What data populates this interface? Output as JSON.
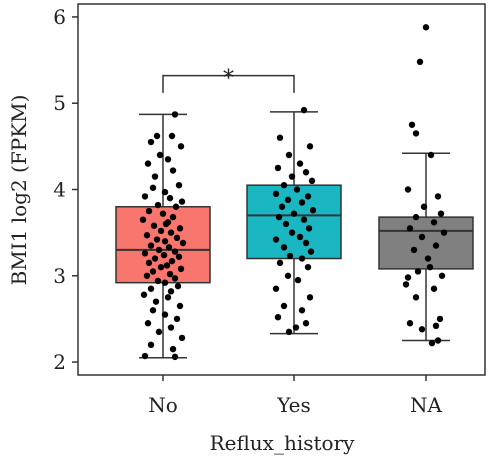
{
  "chart_data": {
    "type": "box",
    "title": "",
    "xlabel": "Reflux_history",
    "ylabel": "BMI1 log2 (FPKM)",
    "ylim": [
      1.85,
      6.15
    ],
    "yticks": [
      2,
      3,
      4,
      5,
      6
    ],
    "categories": [
      "No",
      "Yes",
      "NA"
    ],
    "colors": {
      "No": "#f8766d",
      "Yes": "#1ab7c2",
      "NA": "#808080"
    },
    "boxes": [
      {
        "name": "No",
        "whisker_low": 2.05,
        "q1": 2.92,
        "median": 3.3,
        "q3": 3.8,
        "whisker_high": 4.87
      },
      {
        "name": "Yes",
        "whisker_low": 2.33,
        "q1": 3.2,
        "median": 3.7,
        "q3": 4.05,
        "whisker_high": 4.9
      },
      {
        "name": "NA",
        "whisker_low": 2.25,
        "q1": 3.08,
        "median": 3.52,
        "q3": 3.68,
        "whisker_high": 4.42
      }
    ],
    "points": {
      "No": [
        [
          0.12,
          4.87
        ],
        [
          -0.06,
          4.62
        ],
        [
          0.09,
          4.62
        ],
        [
          -0.12,
          4.55
        ],
        [
          0.18,
          4.5
        ],
        [
          -0.03,
          4.4
        ],
        [
          0.05,
          4.35
        ],
        [
          -0.15,
          4.3
        ],
        [
          0.1,
          4.22
        ],
        [
          -0.08,
          4.15
        ],
        [
          0.16,
          4.05
        ],
        [
          -0.1,
          4.02
        ],
        [
          0.02,
          3.97
        ],
        [
          -0.18,
          3.92
        ],
        [
          0.07,
          3.9
        ],
        [
          0.19,
          3.86
        ],
        [
          -0.05,
          3.82
        ],
        [
          0.13,
          3.8
        ],
        [
          -0.14,
          3.75
        ],
        [
          0.0,
          3.72
        ],
        [
          0.1,
          3.68
        ],
        [
          -0.2,
          3.65
        ],
        [
          0.05,
          3.62
        ],
        [
          -0.09,
          3.58
        ],
        [
          0.17,
          3.55
        ],
        [
          -0.02,
          3.52
        ],
        [
          0.08,
          3.5
        ],
        [
          -0.16,
          3.47
        ],
        [
          0.14,
          3.44
        ],
        [
          -0.06,
          3.42
        ],
        [
          0.02,
          3.4
        ],
        [
          0.2,
          3.38
        ],
        [
          -0.12,
          3.35
        ],
        [
          0.06,
          3.33
        ],
        [
          -0.04,
          3.3
        ],
        [
          0.12,
          3.28
        ],
        [
          -0.18,
          3.26
        ],
        [
          0.01,
          3.24
        ],
        [
          0.16,
          3.22
        ],
        [
          -0.08,
          3.2
        ],
        [
          0.09,
          3.17
        ],
        [
          -0.14,
          3.15
        ],
        [
          0.04,
          3.12
        ],
        [
          -0.02,
          3.1
        ],
        [
          0.18,
          3.08
        ],
        [
          -0.1,
          3.05
        ],
        [
          0.07,
          3.02
        ],
        [
          -0.16,
          3.0
        ],
        [
          0.12,
          2.97
        ],
        [
          -0.05,
          2.94
        ],
        [
          0.02,
          2.92
        ],
        [
          0.15,
          2.88
        ],
        [
          -0.12,
          2.85
        ],
        [
          0.08,
          2.82
        ],
        [
          -0.19,
          2.78
        ],
        [
          0.05,
          2.75
        ],
        [
          -0.07,
          2.7
        ],
        [
          0.17,
          2.65
        ],
        [
          -0.1,
          2.6
        ],
        [
          0.02,
          2.55
        ],
        [
          0.14,
          2.5
        ],
        [
          -0.15,
          2.45
        ],
        [
          0.08,
          2.4
        ],
        [
          -0.04,
          2.35
        ],
        [
          0.19,
          2.28
        ],
        [
          -0.12,
          2.2
        ],
        [
          0.1,
          2.15
        ],
        [
          -0.18,
          2.07
        ],
        [
          0.12,
          2.06
        ],
        [
          0.03,
          3.6
        ]
      ],
      "Yes": [
        [
          0.1,
          4.92
        ],
        [
          -0.14,
          4.6
        ],
        [
          0.16,
          4.5
        ],
        [
          -0.05,
          4.4
        ],
        [
          0.06,
          4.3
        ],
        [
          -0.16,
          4.25
        ],
        [
          0.12,
          4.2
        ],
        [
          -0.02,
          4.15
        ],
        [
          0.18,
          4.1
        ],
        [
          -0.1,
          4.05
        ],
        [
          0.03,
          4.0
        ],
        [
          -0.18,
          3.95
        ],
        [
          0.14,
          3.92
        ],
        [
          -0.06,
          3.88
        ],
        [
          0.08,
          3.85
        ],
        [
          -0.12,
          3.8
        ],
        [
          0.19,
          3.76
        ],
        [
          0.0,
          3.72
        ],
        [
          -0.15,
          3.68
        ],
        [
          0.1,
          3.65
        ],
        [
          -0.08,
          3.6
        ],
        [
          0.15,
          3.55
        ],
        [
          -0.02,
          3.5
        ],
        [
          0.06,
          3.45
        ],
        [
          -0.18,
          3.42
        ],
        [
          0.12,
          3.38
        ],
        [
          -0.1,
          3.33
        ],
        [
          0.17,
          3.28
        ],
        [
          -0.04,
          3.23
        ],
        [
          0.08,
          3.2
        ],
        [
          -0.14,
          3.15
        ],
        [
          0.14,
          3.1
        ],
        [
          -0.06,
          3.0
        ],
        [
          0.04,
          2.95
        ],
        [
          -0.18,
          2.85
        ],
        [
          0.16,
          2.75
        ],
        [
          -0.1,
          2.65
        ],
        [
          0.08,
          2.6
        ],
        [
          -0.16,
          2.52
        ],
        [
          0.12,
          2.45
        ],
        [
          -0.05,
          2.35
        ],
        [
          0.02,
          2.4
        ]
      ],
      "NA": [
        [
          0.0,
          5.88
        ],
        [
          -0.06,
          5.48
        ],
        [
          -0.14,
          4.75
        ],
        [
          -0.1,
          4.65
        ],
        [
          0.05,
          4.4
        ],
        [
          -0.18,
          4.0
        ],
        [
          0.12,
          3.92
        ],
        [
          -0.02,
          3.8
        ],
        [
          0.15,
          3.72
        ],
        [
          -0.1,
          3.68
        ],
        [
          0.08,
          3.62
        ],
        [
          -0.16,
          3.55
        ],
        [
          0.18,
          3.5
        ],
        [
          -0.04,
          3.45
        ],
        [
          0.1,
          3.35
        ],
        [
          -0.12,
          3.3
        ],
        [
          0.04,
          3.1
        ],
        [
          -0.08,
          3.05
        ],
        [
          0.16,
          3.0
        ],
        [
          -0.18,
          2.98
        ],
        [
          0.08,
          2.85
        ],
        [
          -0.1,
          2.75
        ],
        [
          0.14,
          2.5
        ],
        [
          -0.16,
          2.45
        ],
        [
          0.1,
          2.42
        ],
        [
          -0.04,
          2.38
        ],
        [
          0.12,
          2.25
        ],
        [
          0.06,
          2.22
        ],
        [
          -0.2,
          2.9
        ],
        [
          0.02,
          3.2
        ]
      ]
    },
    "significance": {
      "from": "No",
      "to": "Yes",
      "label": "*",
      "y": 5.32,
      "tip": 5.12
    }
  }
}
